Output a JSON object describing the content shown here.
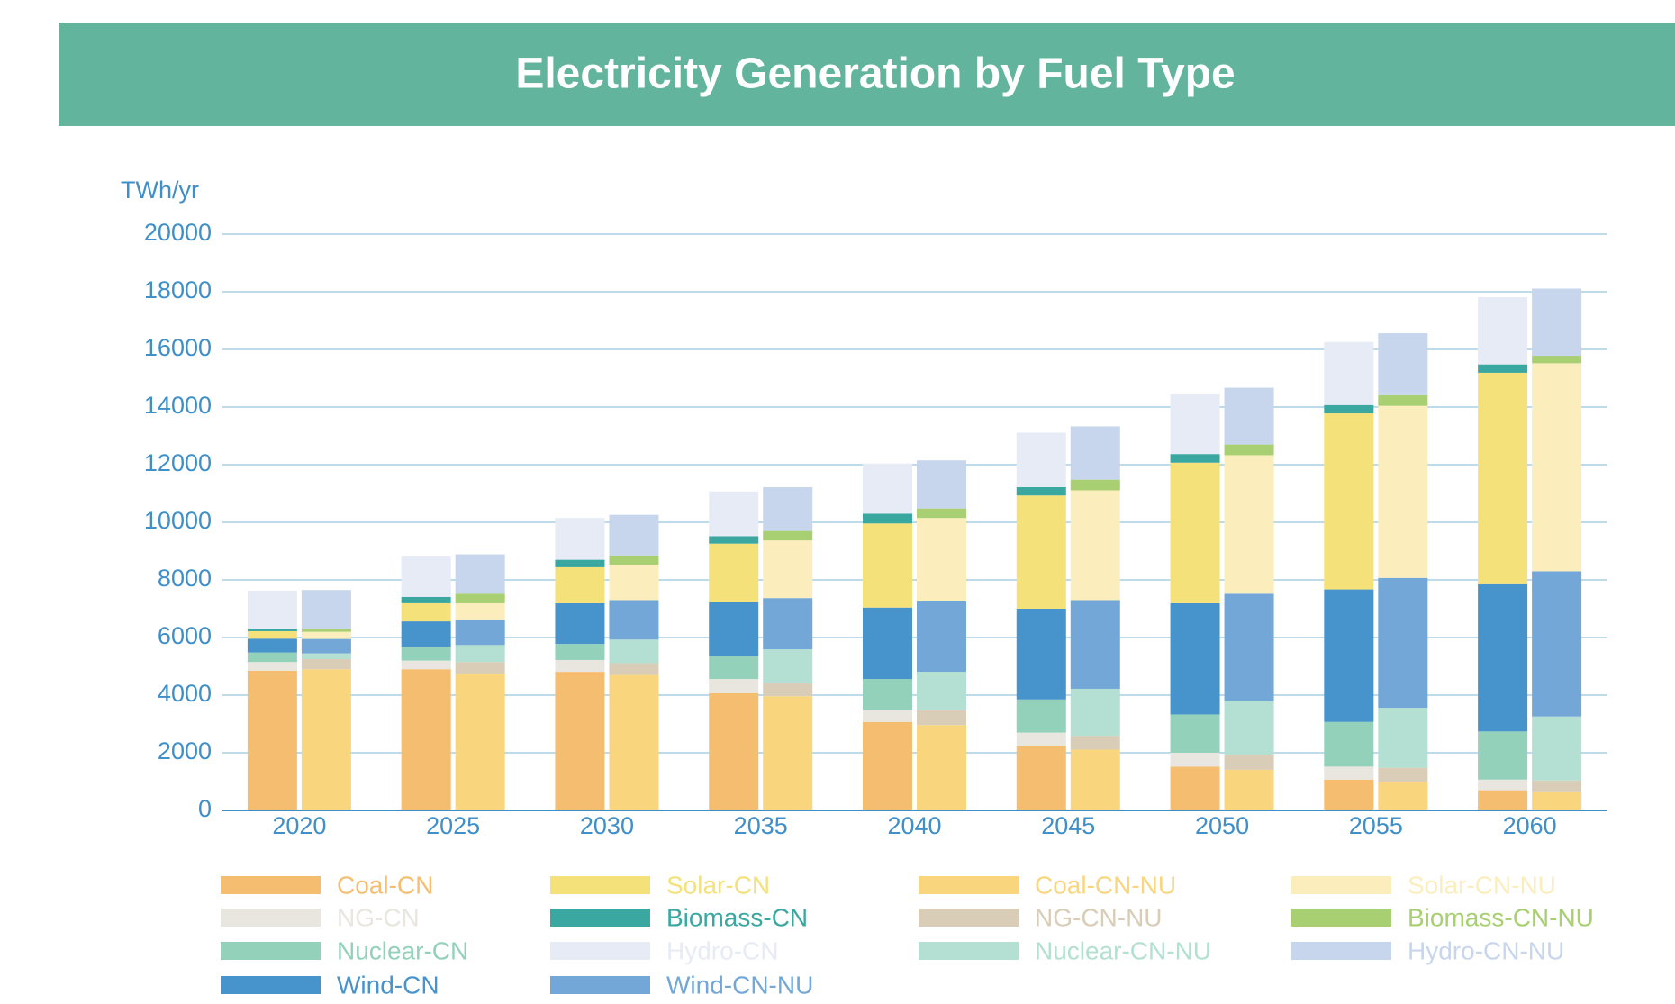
{
  "chart_data": {
    "type": "grouped-stacked-bar",
    "title": "Electricity Generation by Fuel Type",
    "y_label": "TWh/yr",
    "categories": [
      "2020",
      "2025",
      "2030",
      "2035",
      "2040",
      "2045",
      "2050",
      "2055",
      "2060"
    ],
    "ylim": [
      0,
      20000
    ],
    "yticks": [
      0,
      2000,
      4000,
      6000,
      8000,
      10000,
      12000,
      14000,
      16000,
      18000,
      20000
    ],
    "grid": true,
    "series": [
      {
        "name": "Coal-CN",
        "color": "#f5bd6f",
        "stack": 0,
        "values": [
          4850,
          4900,
          4810,
          4070,
          3070,
          2220,
          1520,
          1070,
          700
        ]
      },
      {
        "name": "NG-CN",
        "color": "#e8e6df",
        "stack": 0,
        "values": [
          300,
          300,
          410,
          490,
          410,
          480,
          480,
          450,
          370
        ]
      },
      {
        "name": "Nuclear-CN",
        "color": "#93d1bb",
        "stack": 0,
        "values": [
          330,
          480,
          560,
          810,
          1080,
          1150,
          1330,
          1550,
          1670
        ]
      },
      {
        "name": "Wind-CN",
        "color": "#4793cc",
        "stack": 0,
        "values": [
          480,
          880,
          1410,
          1850,
          2480,
          3150,
          3860,
          4600,
          5110
        ]
      },
      {
        "name": "Solar-CN",
        "color": "#f5e17a",
        "stack": 0,
        "values": [
          260,
          630,
          1250,
          2040,
          2920,
          3930,
          4880,
          6110,
          7340
        ]
      },
      {
        "name": "Biomass-CN",
        "color": "#3aa8a0",
        "stack": 0,
        "values": [
          80,
          220,
          260,
          260,
          340,
          290,
          300,
          290,
          290
        ]
      },
      {
        "name": "Hydro-CN",
        "color": "#e6ebf5",
        "stack": 0,
        "values": [
          1330,
          1400,
          1450,
          1550,
          1740,
          1890,
          2070,
          2190,
          2330
        ]
      },
      {
        "name": "Coal-CN-NU",
        "color": "#f9d67e",
        "stack": 1,
        "values": [
          4900,
          4740,
          4700,
          3960,
          2960,
          2110,
          1410,
          1000,
          630
        ]
      },
      {
        "name": "NG-CN-NU",
        "color": "#d9cdb8",
        "stack": 1,
        "values": [
          350,
          410,
          410,
          450,
          520,
          480,
          520,
          480,
          410
        ]
      },
      {
        "name": "Nuclear-CN-NU",
        "color": "#b3e0d2",
        "stack": 1,
        "values": [
          200,
          590,
          820,
          1180,
          1330,
          1630,
          1850,
          2080,
          2220
        ]
      },
      {
        "name": "Wind-CN-NU",
        "color": "#72a7d8",
        "stack": 1,
        "values": [
          500,
          890,
          1370,
          1780,
          2450,
          3080,
          3740,
          4510,
          5040
        ]
      },
      {
        "name": "Solar-CN-NU",
        "color": "#fbeebc",
        "stack": 1,
        "values": [
          250,
          560,
          1220,
          2000,
          2890,
          3810,
          4810,
          5970,
          7220
        ]
      },
      {
        "name": "Biomass-CN-NU",
        "color": "#a8cf72",
        "stack": 1,
        "values": [
          100,
          330,
          330,
          330,
          330,
          370,
          370,
          370,
          260
        ]
      },
      {
        "name": "Hydro-CN-NU",
        "color": "#c7d6ec",
        "stack": 1,
        "values": [
          1350,
          1370,
          1410,
          1520,
          1670,
          1850,
          1970,
          2150,
          2330
        ]
      }
    ]
  }
}
